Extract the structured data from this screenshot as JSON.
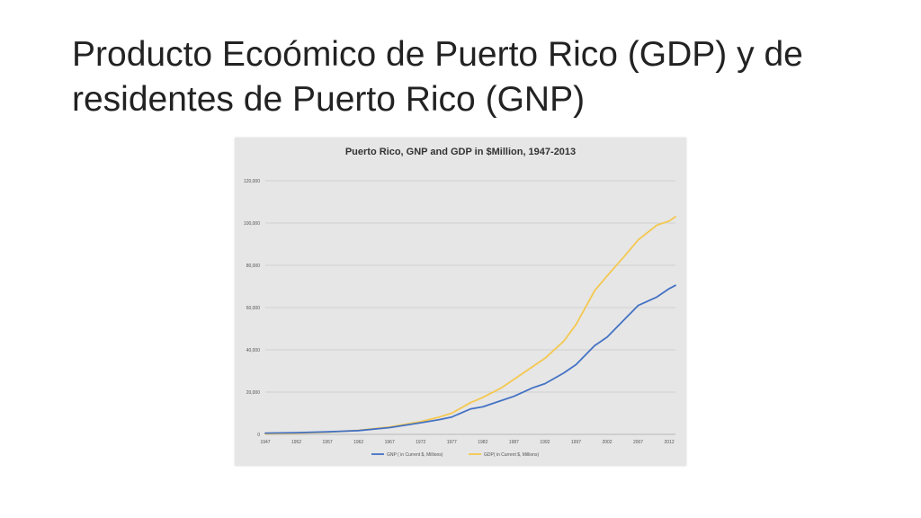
{
  "slide": {
    "title_line1": "Producto Ecoómico de Puerto Rico (GDP) y de",
    "title_line2": "residentes de Puerto Rico (GNP)"
  },
  "chart_data": {
    "type": "line",
    "title": "Puerto Rico, GNP and GDP in $Million, 1947-2013",
    "xlabel": "",
    "ylabel": "",
    "xlim": [
      1947,
      2013
    ],
    "ylim": [
      0,
      120000
    ],
    "yticks": [
      0,
      20000,
      40000,
      60000,
      80000,
      100000,
      120000
    ],
    "ytick_labels": [
      "0",
      "20,000",
      "40,000",
      "60,000",
      "80,000",
      "100,000",
      "120,000"
    ],
    "xticks": [
      1947,
      1952,
      1957,
      1962,
      1967,
      1972,
      1977,
      1982,
      1987,
      1992,
      1997,
      2002,
      2007,
      2012
    ],
    "grid": "horizontal",
    "legend_position": "bottom",
    "series": [
      {
        "name": "GNP ( in Current $, Millions)",
        "color": "#4472c4",
        "x": [
          1947,
          1952,
          1957,
          1962,
          1967,
          1972,
          1975,
          1977,
          1980,
          1982,
          1985,
          1987,
          1990,
          1992,
          1995,
          1997,
          2000,
          2002,
          2005,
          2007,
          2010,
          2012,
          2013
        ],
        "y": [
          600,
          800,
          1200,
          1800,
          3200,
          5500,
          7000,
          8200,
          12000,
          13000,
          16000,
          18000,
          22000,
          24000,
          29000,
          33000,
          42000,
          46000,
          55000,
          61000,
          65000,
          69000,
          70500
        ]
      },
      {
        "name": "GDP( in Current $, Millions)",
        "color": "#f4c84f",
        "x": [
          1947,
          1952,
          1957,
          1962,
          1967,
          1972,
          1975,
          1977,
          1980,
          1982,
          1985,
          1987,
          1990,
          1992,
          1995,
          1997,
          2000,
          2002,
          2005,
          2007,
          2010,
          2012,
          2013
        ],
        "y": [
          300,
          600,
          1000,
          1900,
          3500,
          6000,
          8200,
          10000,
          15000,
          17500,
          22000,
          26000,
          32000,
          36000,
          44000,
          52000,
          68000,
          75000,
          85000,
          92000,
          99000,
          101000,
          103000
        ]
      }
    ]
  }
}
